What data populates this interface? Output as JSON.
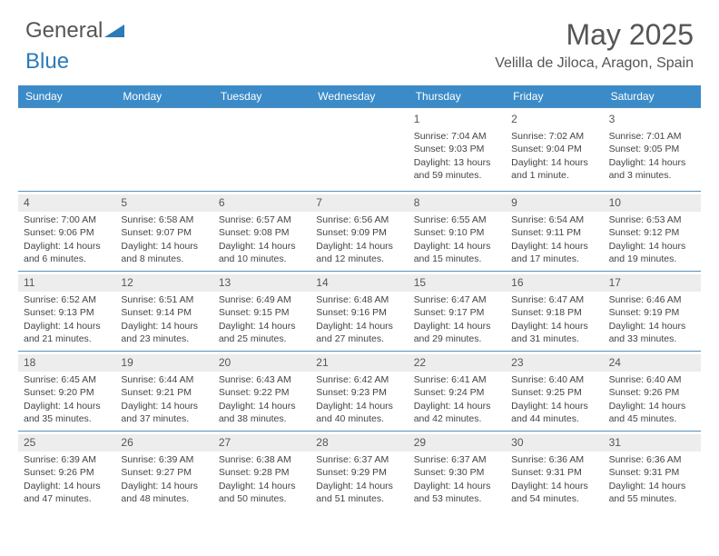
{
  "brand": {
    "part1": "General",
    "part2": "Blue"
  },
  "title": "May 2025",
  "location": "Velilla de Jiloca, Aragon, Spain",
  "colors": {
    "header_bg": "#3b8bc8",
    "header_text": "#ffffff",
    "rule": "#5a8fb9",
    "daynum_bg": "#ededed",
    "text": "#444444",
    "logo_blue": "#2b7bb9"
  },
  "fonts": {
    "title_size_pt": 24,
    "location_size_pt": 12,
    "dayheader_size_pt": 9,
    "cell_size_pt": 8
  },
  "day_names": [
    "Sunday",
    "Monday",
    "Tuesday",
    "Wednesday",
    "Thursday",
    "Friday",
    "Saturday"
  ],
  "weeks": [
    [
      null,
      null,
      null,
      null,
      {
        "n": "1",
        "sr": "7:04 AM",
        "ss": "9:03 PM",
        "dl": "13 hours and 59 minutes."
      },
      {
        "n": "2",
        "sr": "7:02 AM",
        "ss": "9:04 PM",
        "dl": "14 hours and 1 minute."
      },
      {
        "n": "3",
        "sr": "7:01 AM",
        "ss": "9:05 PM",
        "dl": "14 hours and 3 minutes."
      }
    ],
    [
      {
        "n": "4",
        "sr": "7:00 AM",
        "ss": "9:06 PM",
        "dl": "14 hours and 6 minutes."
      },
      {
        "n": "5",
        "sr": "6:58 AM",
        "ss": "9:07 PM",
        "dl": "14 hours and 8 minutes."
      },
      {
        "n": "6",
        "sr": "6:57 AM",
        "ss": "9:08 PM",
        "dl": "14 hours and 10 minutes."
      },
      {
        "n": "7",
        "sr": "6:56 AM",
        "ss": "9:09 PM",
        "dl": "14 hours and 12 minutes."
      },
      {
        "n": "8",
        "sr": "6:55 AM",
        "ss": "9:10 PM",
        "dl": "14 hours and 15 minutes."
      },
      {
        "n": "9",
        "sr": "6:54 AM",
        "ss": "9:11 PM",
        "dl": "14 hours and 17 minutes."
      },
      {
        "n": "10",
        "sr": "6:53 AM",
        "ss": "9:12 PM",
        "dl": "14 hours and 19 minutes."
      }
    ],
    [
      {
        "n": "11",
        "sr": "6:52 AM",
        "ss": "9:13 PM",
        "dl": "14 hours and 21 minutes."
      },
      {
        "n": "12",
        "sr": "6:51 AM",
        "ss": "9:14 PM",
        "dl": "14 hours and 23 minutes."
      },
      {
        "n": "13",
        "sr": "6:49 AM",
        "ss": "9:15 PM",
        "dl": "14 hours and 25 minutes."
      },
      {
        "n": "14",
        "sr": "6:48 AM",
        "ss": "9:16 PM",
        "dl": "14 hours and 27 minutes."
      },
      {
        "n": "15",
        "sr": "6:47 AM",
        "ss": "9:17 PM",
        "dl": "14 hours and 29 minutes."
      },
      {
        "n": "16",
        "sr": "6:47 AM",
        "ss": "9:18 PM",
        "dl": "14 hours and 31 minutes."
      },
      {
        "n": "17",
        "sr": "6:46 AM",
        "ss": "9:19 PM",
        "dl": "14 hours and 33 minutes."
      }
    ],
    [
      {
        "n": "18",
        "sr": "6:45 AM",
        "ss": "9:20 PM",
        "dl": "14 hours and 35 minutes."
      },
      {
        "n": "19",
        "sr": "6:44 AM",
        "ss": "9:21 PM",
        "dl": "14 hours and 37 minutes."
      },
      {
        "n": "20",
        "sr": "6:43 AM",
        "ss": "9:22 PM",
        "dl": "14 hours and 38 minutes."
      },
      {
        "n": "21",
        "sr": "6:42 AM",
        "ss": "9:23 PM",
        "dl": "14 hours and 40 minutes."
      },
      {
        "n": "22",
        "sr": "6:41 AM",
        "ss": "9:24 PM",
        "dl": "14 hours and 42 minutes."
      },
      {
        "n": "23",
        "sr": "6:40 AM",
        "ss": "9:25 PM",
        "dl": "14 hours and 44 minutes."
      },
      {
        "n": "24",
        "sr": "6:40 AM",
        "ss": "9:26 PM",
        "dl": "14 hours and 45 minutes."
      }
    ],
    [
      {
        "n": "25",
        "sr": "6:39 AM",
        "ss": "9:26 PM",
        "dl": "14 hours and 47 minutes."
      },
      {
        "n": "26",
        "sr": "6:39 AM",
        "ss": "9:27 PM",
        "dl": "14 hours and 48 minutes."
      },
      {
        "n": "27",
        "sr": "6:38 AM",
        "ss": "9:28 PM",
        "dl": "14 hours and 50 minutes."
      },
      {
        "n": "28",
        "sr": "6:37 AM",
        "ss": "9:29 PM",
        "dl": "14 hours and 51 minutes."
      },
      {
        "n": "29",
        "sr": "6:37 AM",
        "ss": "9:30 PM",
        "dl": "14 hours and 53 minutes."
      },
      {
        "n": "30",
        "sr": "6:36 AM",
        "ss": "9:31 PM",
        "dl": "14 hours and 54 minutes."
      },
      {
        "n": "31",
        "sr": "6:36 AM",
        "ss": "9:31 PM",
        "dl": "14 hours and 55 minutes."
      }
    ]
  ],
  "labels": {
    "sunrise": "Sunrise:",
    "sunset": "Sunset:",
    "daylight": "Daylight:"
  }
}
